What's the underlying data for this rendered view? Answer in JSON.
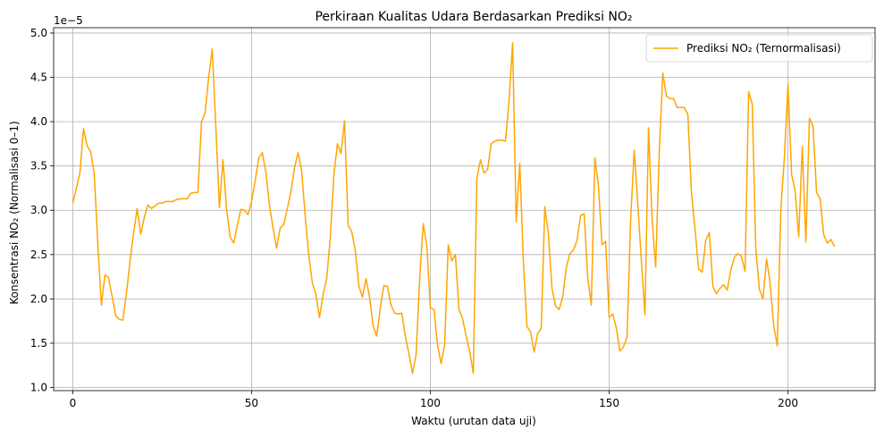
{
  "chart_data": {
    "type": "line",
    "title": "Perkiraan Kualitas Udara Berdasarkan Prediksi NO₂",
    "xlabel": "Waktu (urutan data uji)",
    "ylabel": "Konsentrasi NO₂ (Normalisasi 0–1)",
    "y_offset_label": "1e−5",
    "xlim": [
      -5.35,
      224.35
    ],
    "ylim": [
      0.965,
      5.06
    ],
    "x_ticks": [
      0,
      50,
      100,
      150,
      200
    ],
    "x_tick_labels": [
      "0",
      "50",
      "100",
      "150",
      "200"
    ],
    "y_ticks": [
      1.0,
      1.5,
      2.0,
      2.5,
      3.0,
      3.5,
      4.0,
      4.5,
      5.0
    ],
    "y_tick_labels": [
      "1.0",
      "1.5",
      "2.0",
      "2.5",
      "3.0",
      "3.5",
      "4.0",
      "4.5",
      "5.0"
    ],
    "grid": true,
    "legend_position": "top-right",
    "color": "#FFA500",
    "series": [
      {
        "name": "Prediksi NO₂ (Ternormalisasi)",
        "color": "#FFA500",
        "values": [
          3.08,
          3.25,
          3.42,
          3.92,
          3.73,
          3.66,
          3.42,
          2.62,
          1.93,
          2.27,
          2.24,
          2.03,
          1.81,
          1.77,
          1.76,
          2.06,
          2.42,
          2.74,
          3.02,
          2.73,
          2.92,
          3.06,
          3.02,
          3.05,
          3.08,
          3.08,
          3.1,
          3.1,
          3.1,
          3.12,
          3.13,
          3.13,
          3.13,
          3.19,
          3.2,
          3.2,
          4.0,
          4.1,
          4.5,
          4.82,
          3.95,
          3.03,
          3.57,
          3.02,
          2.7,
          2.63,
          2.83,
          3.01,
          3.0,
          2.95,
          3.1,
          3.33,
          3.59,
          3.65,
          3.43,
          3.06,
          2.8,
          2.57,
          2.8,
          2.84,
          3.02,
          3.21,
          3.48,
          3.65,
          3.45,
          2.93,
          2.49,
          2.18,
          2.05,
          1.79,
          2.05,
          2.23,
          2.68,
          3.39,
          3.75,
          3.64,
          4.01,
          2.83,
          2.76,
          2.55,
          2.15,
          2.02,
          2.23,
          2.02,
          1.69,
          1.58,
          1.9,
          2.15,
          2.14,
          1.93,
          1.84,
          1.83,
          1.84,
          1.58,
          1.38,
          1.16,
          1.37,
          2.22,
          2.85,
          2.6,
          1.9,
          1.88,
          1.48,
          1.27,
          1.48,
          2.61,
          2.43,
          2.5,
          1.88,
          1.78,
          1.58,
          1.41,
          1.16,
          3.36,
          3.57,
          3.42,
          3.46,
          3.75,
          3.78,
          3.79,
          3.79,
          3.78,
          4.24,
          4.89,
          2.87,
          3.53,
          2.43,
          1.69,
          1.63,
          1.4,
          1.61,
          1.67,
          3.04,
          2.73,
          2.12,
          1.92,
          1.88,
          2.02,
          2.35,
          2.51,
          2.55,
          2.66,
          2.94,
          2.96,
          2.24,
          1.93,
          3.59,
          3.27,
          2.61,
          2.65,
          1.79,
          1.83,
          1.67,
          1.41,
          1.46,
          1.57,
          2.89,
          3.68,
          3.07,
          2.43,
          1.82,
          3.93,
          2.9,
          2.36,
          3.65,
          4.55,
          4.29,
          4.26,
          4.26,
          4.16,
          4.16,
          4.16,
          4.08,
          3.2,
          2.79,
          2.34,
          2.3,
          2.66,
          2.75,
          2.14,
          2.06,
          2.12,
          2.16,
          2.1,
          2.32,
          2.47,
          2.51,
          2.48,
          2.31,
          4.34,
          4.2,
          2.57,
          2.11,
          2.0,
          2.45,
          2.18,
          1.7,
          1.47,
          3.01,
          3.6,
          4.42,
          3.41,
          3.22,
          2.7,
          3.72,
          2.64,
          4.04,
          3.95,
          3.2,
          3.13,
          2.72,
          2.63,
          2.67,
          2.59
        ]
      }
    ]
  }
}
